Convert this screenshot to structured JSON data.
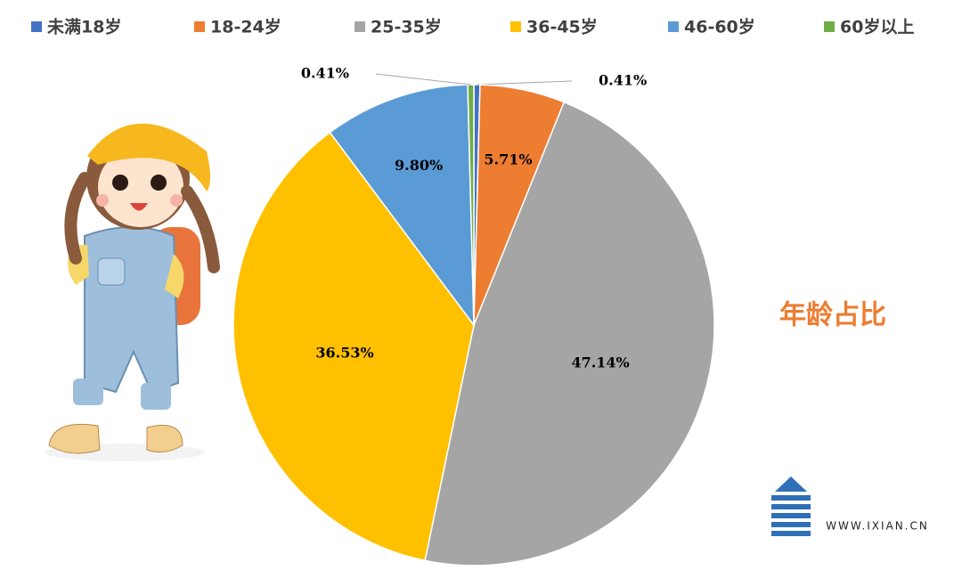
{
  "chart_data": {
    "type": "pie",
    "title": "年龄占比",
    "categories": [
      "未满18岁",
      "18-24岁",
      "25-35岁",
      "36-45岁",
      "46-60岁",
      "60岁以上"
    ],
    "values": [
      0.41,
      5.71,
      47.14,
      36.53,
      9.8,
      0.41
    ],
    "value_labels": [
      "0.41%",
      "5.71%",
      "47.14%",
      "36.53%",
      "9.80%",
      "0.41%"
    ],
    "colors": [
      "#4472c4",
      "#ed7d31",
      "#a5a5a5",
      "#ffc000",
      "#5b9bd5",
      "#70ad47"
    ],
    "legend": "top"
  },
  "footer": {
    "url": "WWW.IXIAN.CN"
  }
}
